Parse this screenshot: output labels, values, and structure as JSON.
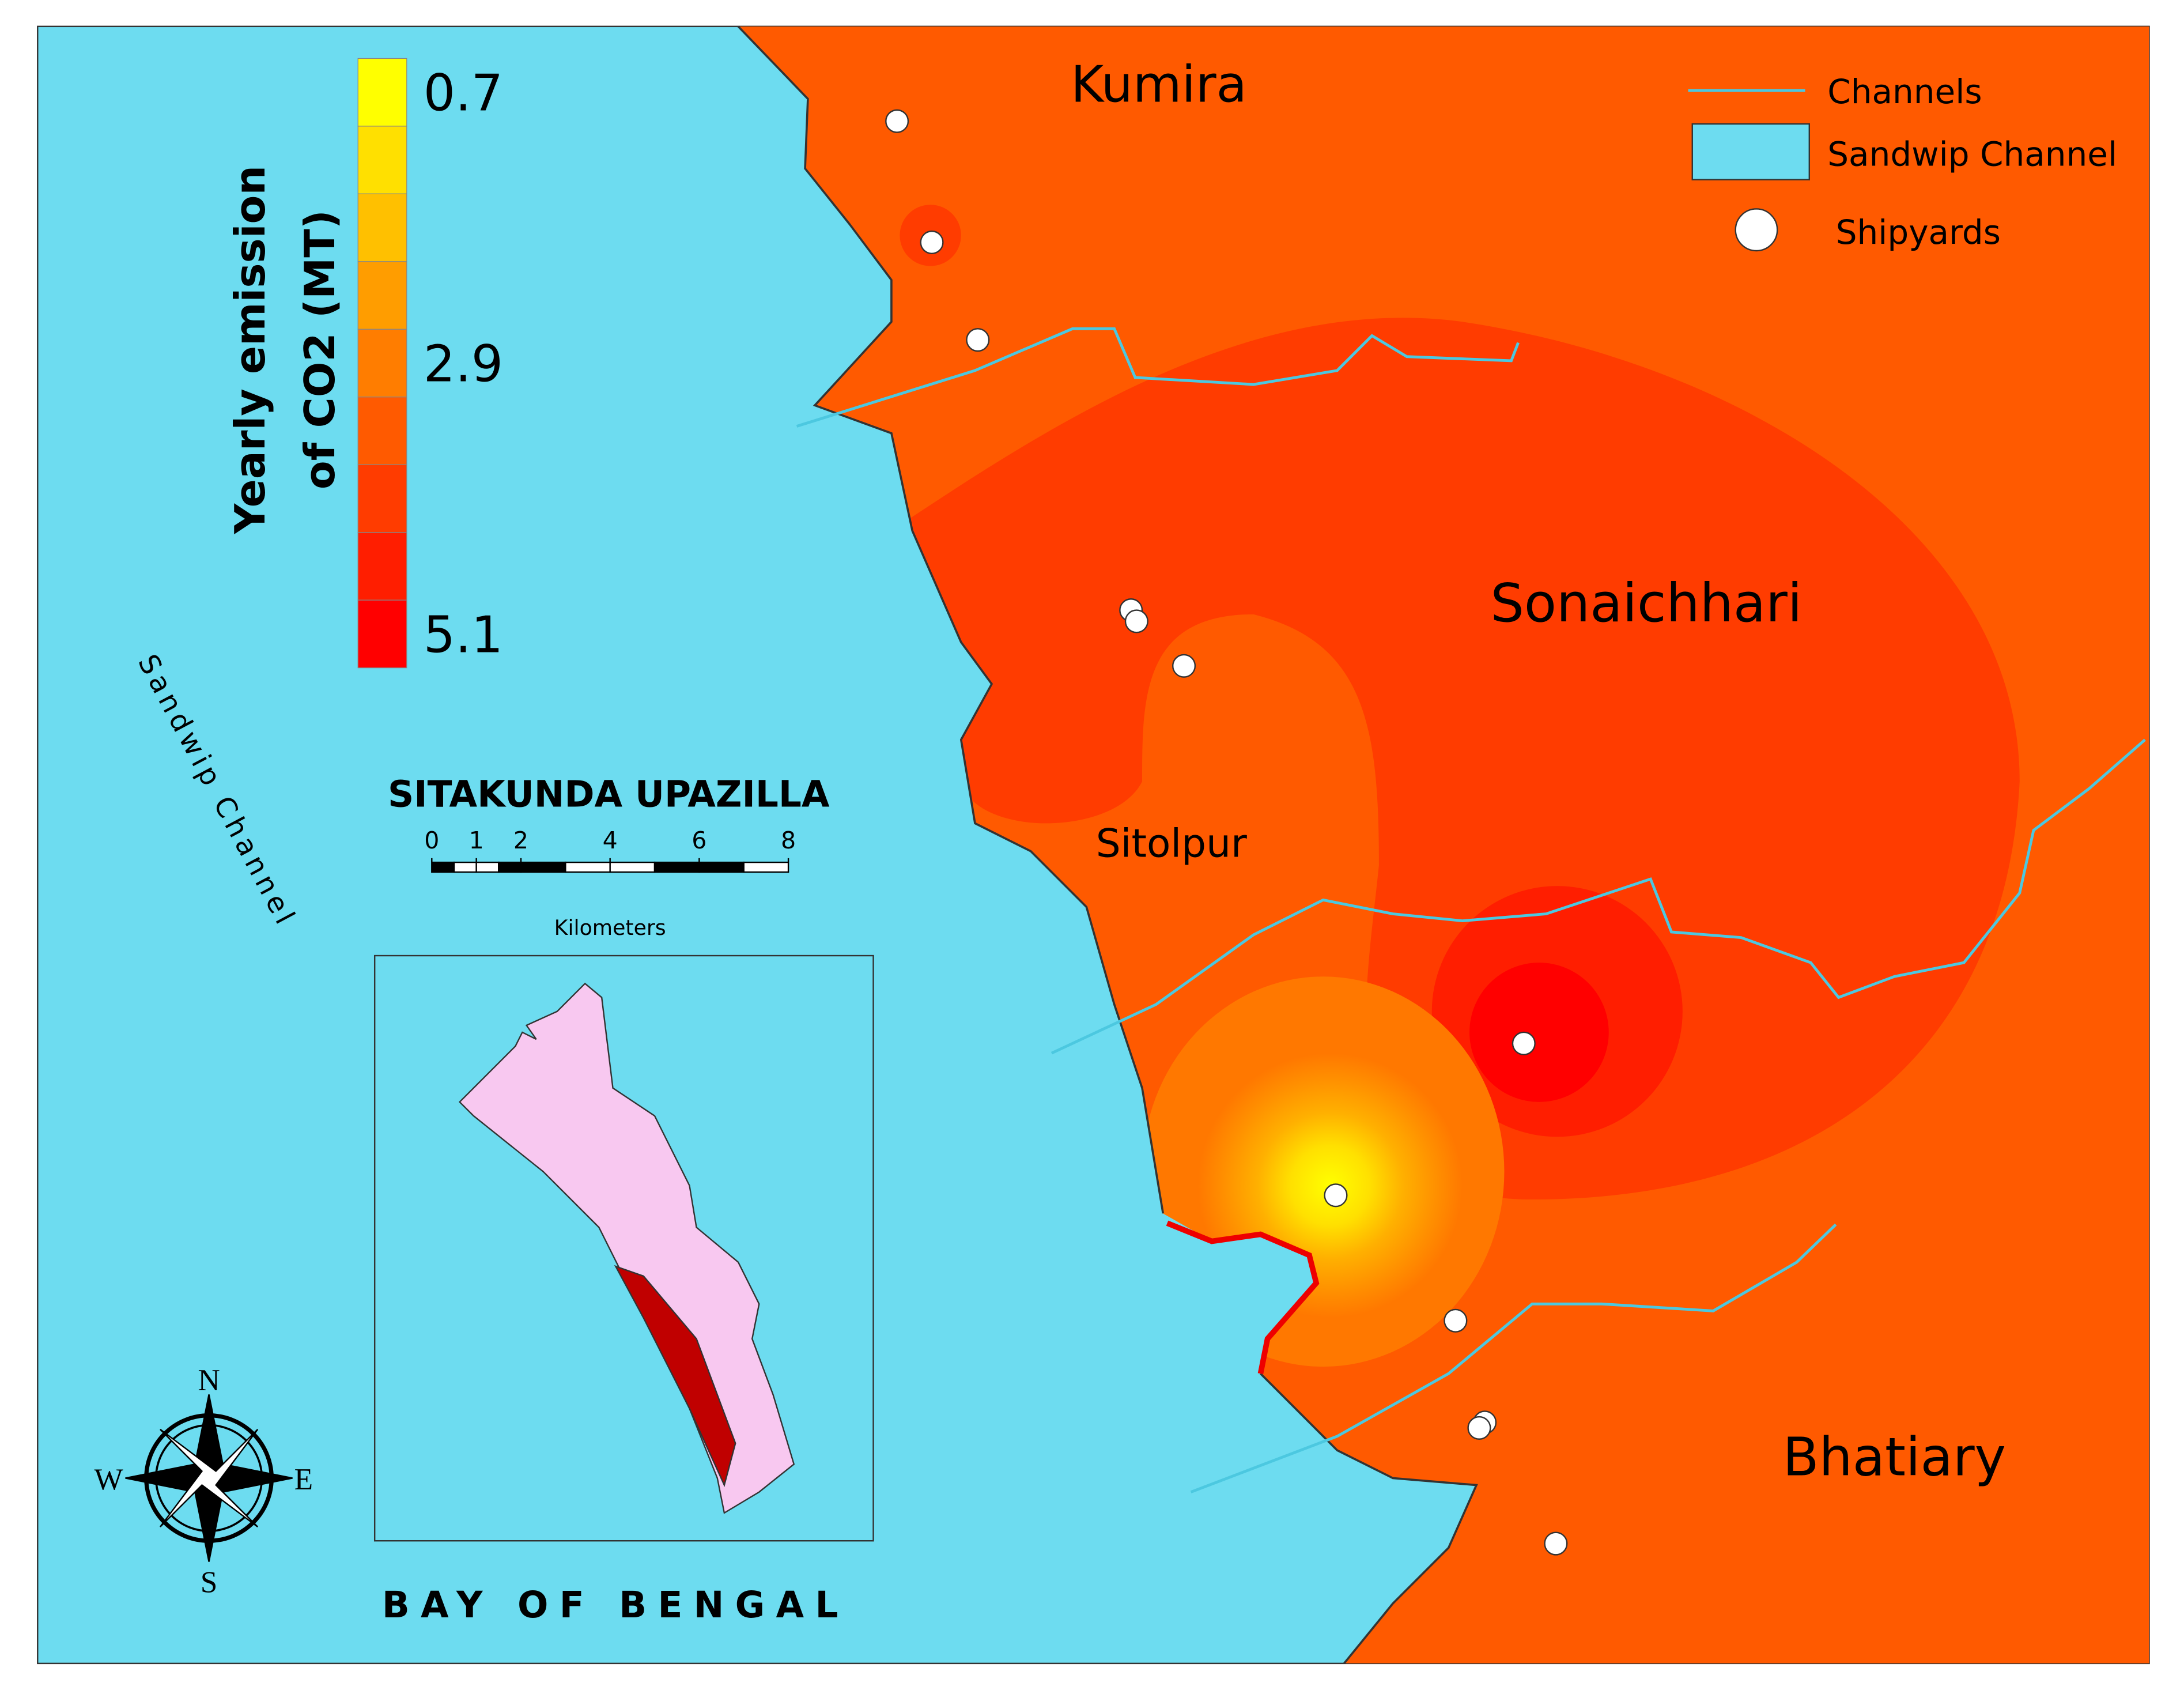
{
  "title": "SITAKUNDA UPAZILLA",
  "colorbar": {
    "title_lines": [
      "Yearly emission",
      "of CO2 (MT)"
    ],
    "labels": [
      0.7,
      2.9,
      5.1
    ]
  },
  "places": [
    "Kumira",
    "Sonaichhari",
    "Sitolpur",
    "Bhatiary"
  ],
  "water_labels": [
    "Sandwip Channel",
    "BAY OF BENGAL"
  ],
  "legend": [
    "Channels",
    "Sandwip Channel",
    "Shipyards"
  ],
  "scale_bar": {
    "ticks": [
      0,
      1,
      2,
      4,
      6,
      8
    ],
    "unit": "Kilometers"
  },
  "compass": {
    "north": "N",
    "south": "S",
    "east": "E",
    "west": "W"
  }
}
